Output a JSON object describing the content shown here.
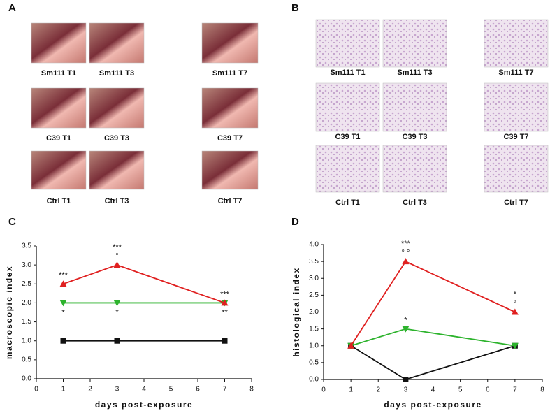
{
  "panels": [
    {
      "letter": "A",
      "style": "photo",
      "rows": [
        [
          "Sm111 T1",
          "Sm111 T3",
          "Sm111 T7"
        ],
        [
          "C39 T1",
          "C39 T3",
          "C39 T7"
        ],
        [
          "Ctrl T1",
          "Ctrl T3",
          "Ctrl T7"
        ]
      ]
    },
    {
      "letter": "B",
      "style": "histology",
      "rows": [
        [
          "Sm111 T1",
          "Sm111 T3",
          "Sm111 T7"
        ],
        [
          "C39 T1",
          "C39 T3",
          "C39 T7"
        ],
        [
          "Ctrl T1",
          "Ctrl T3",
          "Ctrl T7"
        ]
      ]
    }
  ],
  "chart_data": [
    {
      "type": "line",
      "letter": "C",
      "xlabel": "days post-exposure",
      "ylabel": "macroscopic index",
      "x": [
        1,
        3,
        7
      ],
      "series": [
        {
          "color": "#e02020",
          "marker": "triangle-up",
          "values": [
            2.5,
            3.0,
            2.0
          ]
        },
        {
          "color": "#2db32d",
          "marker": "triangle-down",
          "values": [
            2.0,
            2.0,
            2.0
          ]
        },
        {
          "color": "#111111",
          "marker": "square",
          "values": [
            1.0,
            1.0,
            1.0
          ]
        }
      ],
      "xlim": [
        0,
        8
      ],
      "xticks": [
        0,
        1,
        2,
        3,
        4,
        5,
        6,
        7,
        8
      ],
      "ylim": [
        0,
        3.5
      ],
      "yticks": [
        {
          "value": 0,
          "label": "0.0"
        },
        0.5,
        {
          "value": 1,
          "label": "1.0"
        },
        1.5,
        {
          "value": 2,
          "label": "2.0"
        },
        2.5,
        {
          "value": 3,
          "label": "3.0"
        },
        3.5
      ],
      "annotations": [
        {
          "x": 1,
          "series": 0,
          "side": "above",
          "lines": [
            "***"
          ]
        },
        {
          "x": 1,
          "series": 1,
          "side": "below",
          "lines": [
            "*"
          ]
        },
        {
          "x": 3,
          "series": 0,
          "side": "above",
          "lines": [
            "***",
            "°"
          ]
        },
        {
          "x": 3,
          "series": 1,
          "side": "below",
          "lines": [
            "*"
          ]
        },
        {
          "x": 7,
          "series": 0,
          "side": "above",
          "lines": [
            "***"
          ]
        },
        {
          "x": 7,
          "series": 1,
          "side": "below",
          "lines": [
            "**"
          ]
        }
      ]
    },
    {
      "type": "line",
      "letter": "D",
      "xlabel": "days post-exposure",
      "ylabel": "histological index",
      "x": [
        1,
        3,
        7
      ],
      "series": [
        {
          "color": "#e02020",
          "marker": "triangle-up",
          "values": [
            1.0,
            3.5,
            2.0
          ]
        },
        {
          "color": "#2db32d",
          "marker": "triangle-down",
          "values": [
            1.0,
            1.5,
            1.0
          ]
        },
        {
          "color": "#111111",
          "marker": "square",
          "values": [
            1.0,
            0.0,
            1.0
          ]
        }
      ],
      "xlim": [
        0,
        8
      ],
      "xticks": [
        0,
        1,
        2,
        3,
        4,
        5,
        6,
        7,
        8
      ],
      "ylim": [
        0,
        4
      ],
      "yticks": [
        {
          "value": 0,
          "label": "0.0"
        },
        0.5,
        {
          "value": 1,
          "label": "1.0"
        },
        1.5,
        {
          "value": 2,
          "label": "2.0"
        },
        2.5,
        {
          "value": 3,
          "label": "3.0"
        },
        3.5,
        {
          "value": 4,
          "label": "4.0"
        }
      ],
      "annotations": [
        {
          "x": 3,
          "series": 0,
          "side": "above",
          "lines": [
            "***",
            "° °"
          ]
        },
        {
          "x": 3,
          "series": 1,
          "side": "above",
          "lines": [
            "*"
          ]
        },
        {
          "x": 7,
          "series": 0,
          "side": "above",
          "lines": [
            "*",
            "°"
          ]
        }
      ]
    }
  ]
}
